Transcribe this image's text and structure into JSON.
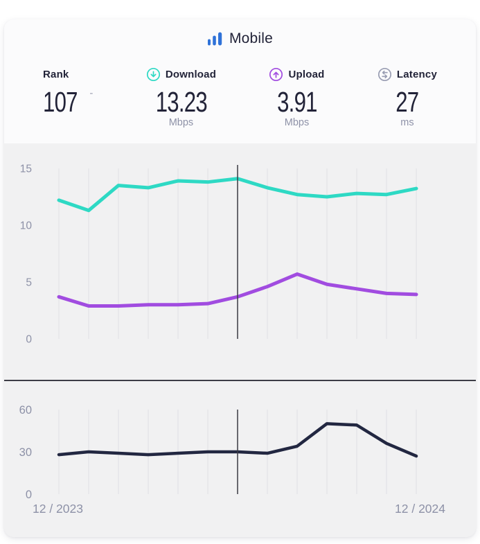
{
  "header": {
    "tab_label": "Mobile",
    "tab_icon": "bar-chart-icon"
  },
  "stats": [
    {
      "label": "Rank",
      "value": "107",
      "change": "-",
      "unit": "",
      "icon": null
    },
    {
      "label": "Download",
      "value": "13.23",
      "change": "",
      "unit": "Mbps",
      "icon": "download-arrow-icon"
    },
    {
      "label": "Upload",
      "value": "3.91",
      "change": "",
      "unit": "Mbps",
      "icon": "upload-arrow-icon"
    },
    {
      "label": "Latency",
      "value": "27",
      "change": "",
      "unit": "ms",
      "icon": "latency-arrows-icon"
    }
  ],
  "chart_data": [
    {
      "type": "line",
      "title": "",
      "x_start_label": "12 / 2023",
      "x_end_label": "12 / 2024",
      "x_points": 13,
      "series": [
        {
          "name": "Download",
          "color": "#2ed9c4",
          "values": [
            12.2,
            11.3,
            13.5,
            13.3,
            13.9,
            13.8,
            14.1,
            13.3,
            12.7,
            12.5,
            12.8,
            12.7,
            13.23
          ]
        },
        {
          "name": "Upload",
          "color": "#a14ce0",
          "values": [
            3.7,
            2.9,
            2.9,
            3.0,
            3.0,
            3.1,
            3.7,
            4.6,
            5.7,
            4.8,
            4.4,
            4.0,
            3.91
          ]
        }
      ],
      "yticks": [
        15,
        10,
        5,
        0
      ],
      "ylim": [
        0,
        15
      ],
      "marker_index": 6,
      "grid": "vertical-only",
      "legend": "none",
      "show_x_labels": false
    },
    {
      "type": "line",
      "title": "",
      "x_start_label": "12 / 2023",
      "x_end_label": "12 / 2024",
      "x_points": 13,
      "series": [
        {
          "name": "Latency",
          "color": "#222741",
          "values": [
            28,
            30,
            29,
            28,
            29,
            30,
            30,
            29,
            34,
            50,
            49,
            36,
            27
          ]
        }
      ],
      "yticks": [
        60,
        30,
        0
      ],
      "ylim": [
        0,
        60
      ],
      "marker_index": 6,
      "grid": "vertical-only",
      "legend": "none",
      "show_x_labels": true
    }
  ],
  "colors": {
    "brand_blue": "#2f72d8",
    "download_teal": "#2ed9c4",
    "upload_purple": "#a14ce0",
    "latency_navy": "#222741",
    "latency_icon_gray": "#9a9eb3",
    "axis_text": "#8d91a7",
    "gridline": "#e5e5e8",
    "marker_line": "#3b3b43",
    "divider": "#3d3d46",
    "header_bg": "#fbfbfc",
    "chart_bg": "#f1f1f2",
    "text_dark": "#222338"
  }
}
